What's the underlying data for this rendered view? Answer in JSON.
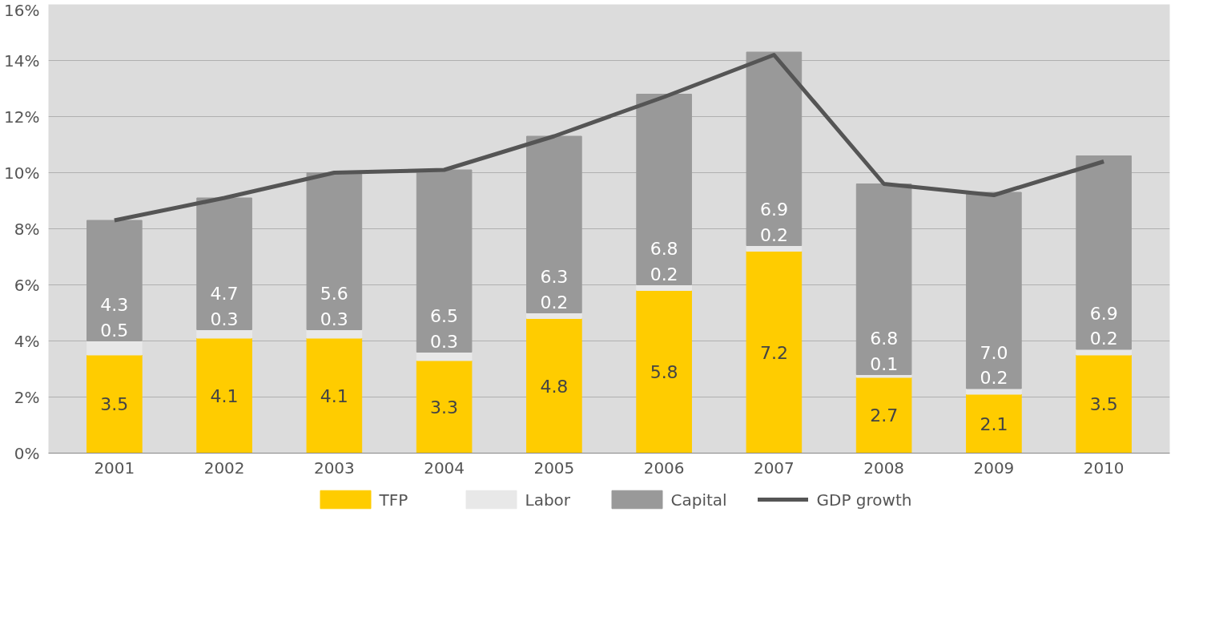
{
  "chart_data": {
    "type": "bar",
    "stacked": true,
    "categories": [
      "2001",
      "2002",
      "2003",
      "2004",
      "2005",
      "2006",
      "2007",
      "2008",
      "2009",
      "2010"
    ],
    "series": [
      {
        "name": "TFP",
        "color": "#ffcc00",
        "values": [
          3.5,
          4.1,
          4.1,
          3.3,
          4.8,
          5.8,
          7.2,
          2.7,
          2.1,
          3.5
        ],
        "value_labels": [
          "3.5",
          "4.1",
          "4.1",
          "3.3",
          "4.8",
          "5.8",
          "7.2",
          "2.7",
          "2.1",
          "3.5"
        ]
      },
      {
        "name": "Labor",
        "color": "#e8e8e8",
        "values": [
          0.5,
          0.3,
          0.3,
          0.3,
          0.2,
          0.2,
          0.2,
          0.1,
          0.2,
          0.2
        ],
        "value_labels": [
          "0.5",
          "0.3",
          "0.3",
          "0.3",
          "0.2",
          "0.2",
          "0.2",
          "0.1",
          "0.2",
          "0.2"
        ]
      },
      {
        "name": "Capital",
        "color": "#999999",
        "values": [
          4.3,
          4.7,
          5.6,
          6.5,
          6.3,
          6.8,
          6.9,
          6.8,
          7.0,
          6.9
        ],
        "value_labels": [
          "4.3",
          "4.7",
          "5.6",
          "6.5",
          "6.3",
          "6.8",
          "6.9",
          "6.8",
          "7.0",
          "6.9"
        ]
      },
      {
        "name": "GDP growth",
        "type": "line",
        "color": "#555555",
        "values": [
          8.3,
          9.1,
          10.0,
          10.1,
          11.3,
          12.7,
          14.2,
          9.6,
          9.2,
          10.4
        ]
      }
    ],
    "ylim": [
      0,
      16
    ],
    "yticks": [
      {
        "value": 0,
        "label": "0%"
      },
      {
        "value": 2,
        "label": "2%"
      },
      {
        "value": 4,
        "label": "4%"
      },
      {
        "value": 6,
        "label": "6%"
      },
      {
        "value": 8,
        "label": "8%"
      },
      {
        "value": 10,
        "label": "10%"
      },
      {
        "value": 12,
        "label": "12%"
      },
      {
        "value": 14,
        "label": "14%"
      },
      {
        "value": 16,
        "label": "16%"
      }
    ],
    "grid": "y",
    "legend": "bottom",
    "marker": "none",
    "line_style": "solid"
  }
}
